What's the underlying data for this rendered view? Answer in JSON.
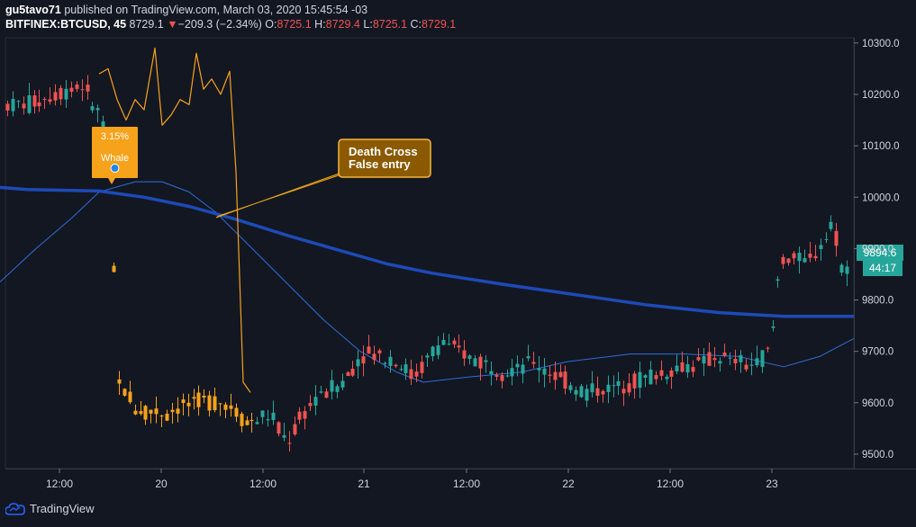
{
  "header": {
    "publisher": "gu5tavo71",
    "published_text": "published on TradingView.com, March 03, 2020 15:45:54 -03",
    "symbol": "BITFINEX:BTCUSD, 45",
    "last_price": "8729.1",
    "change_arrow": "▼",
    "change": "−209.3 (−2.34%)",
    "o_label": "O:",
    "o_value": "8725.1",
    "h_label": "H:",
    "h_value": "8729.4",
    "l_label": "L:",
    "l_value": "8725.1",
    "c_label": "C:",
    "c_value": "8729.1"
  },
  "price_label": "9894.6",
  "time_label": "44:17",
  "annotations": {
    "whale_pct": "3.15%",
    "whale_text": "Whale",
    "death_cross_line1": "Death Cross",
    "death_cross_line2": "False entry"
  },
  "footer": {
    "brand": "TradingView"
  },
  "colors": {
    "background": "#131722",
    "up": "#26a69a",
    "down": "#ef5350",
    "orange": "#f7a21b",
    "ma_thick": "#1e4ab8",
    "ma_thin": "#2f6fd6"
  },
  "chart_data": {
    "type": "candlestick",
    "title": "",
    "y_ticks": [
      9500.0,
      9600.0,
      9700.0,
      9800.0,
      9900.0,
      10000.0,
      10100.0,
      10200.0,
      10300.0
    ],
    "y_tick_labels": [
      "9500.0",
      "9600.0",
      "9700.0",
      "9800.0",
      "9900.0",
      "10000.0",
      "10100.0",
      "10200.0",
      "10300.0"
    ],
    "ylim": [
      9475,
      10320
    ],
    "x_ticks": [
      "12:00",
      "20",
      "12:00",
      "21",
      "12:00",
      "22",
      "12:00",
      "23"
    ],
    "series": {
      "ma_long": [
        [
          0,
          10019
        ],
        [
          30,
          10015
        ],
        [
          110,
          10012
        ],
        [
          160,
          10000
        ],
        [
          210,
          9982
        ],
        [
          260,
          9958
        ],
        [
          320,
          9925
        ],
        [
          380,
          9895
        ],
        [
          430,
          9870
        ],
        [
          480,
          9852
        ],
        [
          560,
          9830
        ],
        [
          640,
          9810
        ],
        [
          720,
          9790
        ],
        [
          800,
          9775
        ],
        [
          870,
          9768
        ],
        [
          948,
          9768
        ]
      ],
      "ma_short": [
        [
          0,
          9835
        ],
        [
          40,
          9900
        ],
        [
          80,
          9960
        ],
        [
          110,
          10010
        ],
        [
          150,
          10030
        ],
        [
          180,
          10030
        ],
        [
          210,
          10010
        ],
        [
          240,
          9970
        ],
        [
          280,
          9900
        ],
        [
          320,
          9830
        ],
        [
          360,
          9760
        ],
        [
          400,
          9700
        ],
        [
          440,
          9660
        ],
        [
          470,
          9640
        ],
        [
          520,
          9650
        ],
        [
          580,
          9660
        ],
        [
          630,
          9680
        ],
        [
          700,
          9695
        ],
        [
          760,
          9695
        ],
        [
          820,
          9690
        ],
        [
          870,
          9670
        ],
        [
          910,
          9690
        ],
        [
          948,
          9725
        ]
      ],
      "orange_line": [
        [
          110,
          10240
        ],
        [
          120,
          10250
        ],
        [
          130,
          10190
        ],
        [
          140,
          10150
        ],
        [
          150,
          10190
        ],
        [
          160,
          10170
        ],
        [
          172,
          10290
        ],
        [
          180,
          10140
        ],
        [
          190,
          10160
        ],
        [
          200,
          10190
        ],
        [
          210,
          10180
        ],
        [
          218,
          10280
        ],
        [
          226,
          10210
        ],
        [
          235,
          10230
        ],
        [
          245,
          10200
        ],
        [
          255,
          10245
        ],
        [
          262,
          10050
        ],
        [
          270,
          9640
        ],
        [
          278,
          9620
        ]
      ]
    }
  }
}
